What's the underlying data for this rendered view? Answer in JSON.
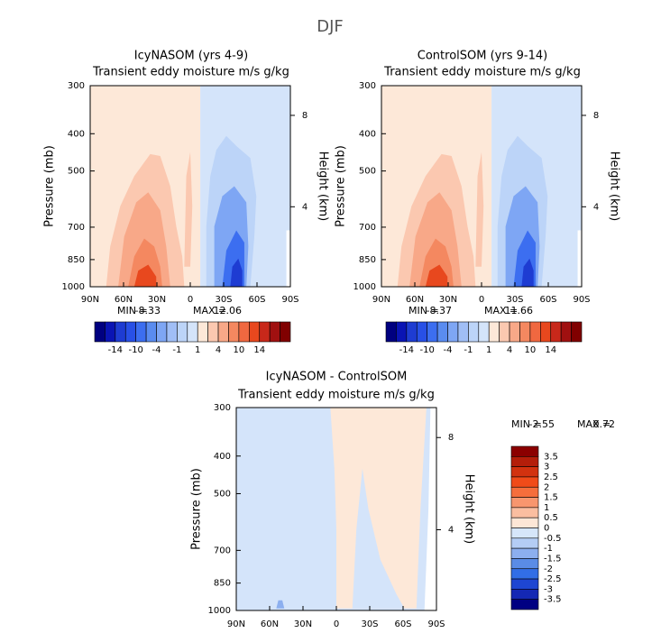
{
  "figure_title": "DJF",
  "chart_data": [
    {
      "type": "contour",
      "title": "IcyNASOM (yrs 4-9)",
      "subtitle": "Transient eddy moisture m/s g/kg",
      "ylabel": "Pressure (mb)",
      "y2label": "Height (km)",
      "log_y": true,
      "ylim": [
        1000,
        300
      ],
      "yticks": [
        300,
        400,
        500,
        700,
        850,
        1000
      ],
      "y2lim": [
        0.5,
        9.3
      ],
      "y2ticks": [
        4,
        8
      ],
      "xlim": [
        90,
        -90
      ],
      "xticks": [
        {
          "value": 90,
          "label": "90N"
        },
        {
          "value": 60,
          "label": "60N"
        },
        {
          "value": 30,
          "label": "30N"
        },
        0,
        {
          "value": -30,
          "label": "30S"
        },
        {
          "value": -60,
          "label": "60S"
        },
        {
          "value": -90,
          "label": "90S"
        }
      ],
      "min_label": "MIN =",
      "min": -8.33,
      "max_label": "MAX =",
      "max": 12.06,
      "colorbar": {
        "orientation": "horizontal",
        "colors": [
          "#000080",
          "#0a14b4",
          "#1e3cd2",
          "#2850e6",
          "#3c6ef0",
          "#5a8cf0",
          "#7ea6f4",
          "#a0bef6",
          "#bcd4f8",
          "#d4e4fa",
          "#fde8d8",
          "#fbc8b0",
          "#f8a888",
          "#f48860",
          "#f06840",
          "#e8481e",
          "#c8281a",
          "#a01010",
          "#800000"
        ],
        "labels": [
          -14,
          -10,
          -4,
          -1,
          1,
          4,
          10,
          14
        ]
      }
    },
    {
      "type": "contour",
      "title": "ControlSOM (yrs 9-14)",
      "subtitle": "Transient eddy moisture m/s g/kg",
      "ylabel": "Pressure (mb)",
      "y2label": "Height (km)",
      "log_y": true,
      "ylim": [
        1000,
        300
      ],
      "yticks": [
        300,
        400,
        500,
        700,
        850,
        1000
      ],
      "y2lim": [
        0.5,
        9.3
      ],
      "y2ticks": [
        4,
        8
      ],
      "xlim": [
        90,
        -90
      ],
      "xticks": [
        {
          "value": 90,
          "label": "90N"
        },
        {
          "value": 60,
          "label": "60N"
        },
        {
          "value": 30,
          "label": "30N"
        },
        0,
        {
          "value": -30,
          "label": "30S"
        },
        {
          "value": -60,
          "label": "60S"
        },
        {
          "value": -90,
          "label": "90S"
        }
      ],
      "min_label": "MIN =",
      "min": -8.37,
      "max_label": "MAX =",
      "max": 11.66,
      "colorbar": {
        "orientation": "horizontal",
        "colors": [
          "#000080",
          "#0a14b4",
          "#1e3cd2",
          "#2850e6",
          "#3c6ef0",
          "#5a8cf0",
          "#7ea6f4",
          "#a0bef6",
          "#bcd4f8",
          "#d4e4fa",
          "#fde8d8",
          "#fbc8b0",
          "#f8a888",
          "#f48860",
          "#f06840",
          "#e8481e",
          "#c8281a",
          "#a01010",
          "#800000"
        ],
        "labels": [
          -14,
          -10,
          -4,
          -1,
          1,
          4,
          10,
          14
        ]
      }
    },
    {
      "type": "contour",
      "title": "IcyNASOM - ControlSOM",
      "subtitle": "Transient eddy moisture m/s g/kg",
      "ylabel": "Pressure (mb)",
      "y2label": "Height (km)",
      "log_y": true,
      "ylim": [
        1000,
        300
      ],
      "yticks": [
        300,
        400,
        500,
        700,
        850,
        1000
      ],
      "y2lim": [
        0.5,
        9.3
      ],
      "y2ticks": [
        4,
        8
      ],
      "xlim": [
        90,
        -90
      ],
      "xticks": [
        {
          "value": 90,
          "label": "90N"
        },
        {
          "value": 60,
          "label": "60N"
        },
        {
          "value": 30,
          "label": "30N"
        },
        0,
        {
          "value": -30,
          "label": "30S"
        },
        {
          "value": -60,
          "label": "60S"
        },
        {
          "value": -90,
          "label": "90S"
        }
      ],
      "min_label": "MIN =",
      "min": -2.55,
      "max_label": "MAX =",
      "max": 0.72,
      "colorbar": {
        "orientation": "vertical",
        "colors": [
          "#8b0000",
          "#b41e0a",
          "#d2320f",
          "#f04b19",
          "#f56e3c",
          "#f8966e",
          "#fabea0",
          "#fde6d6",
          "#d6e6fa",
          "#b4cdf5",
          "#8cafef",
          "#5a8ce6",
          "#326ee6",
          "#1e46d2",
          "#1428b4",
          "#000082"
        ],
        "labels": [
          3.5,
          3,
          2.5,
          2,
          1.5,
          1,
          0.5,
          0,
          -0.5,
          -1,
          -1.5,
          -2,
          -2.5,
          -3,
          -3.5
        ]
      }
    }
  ]
}
